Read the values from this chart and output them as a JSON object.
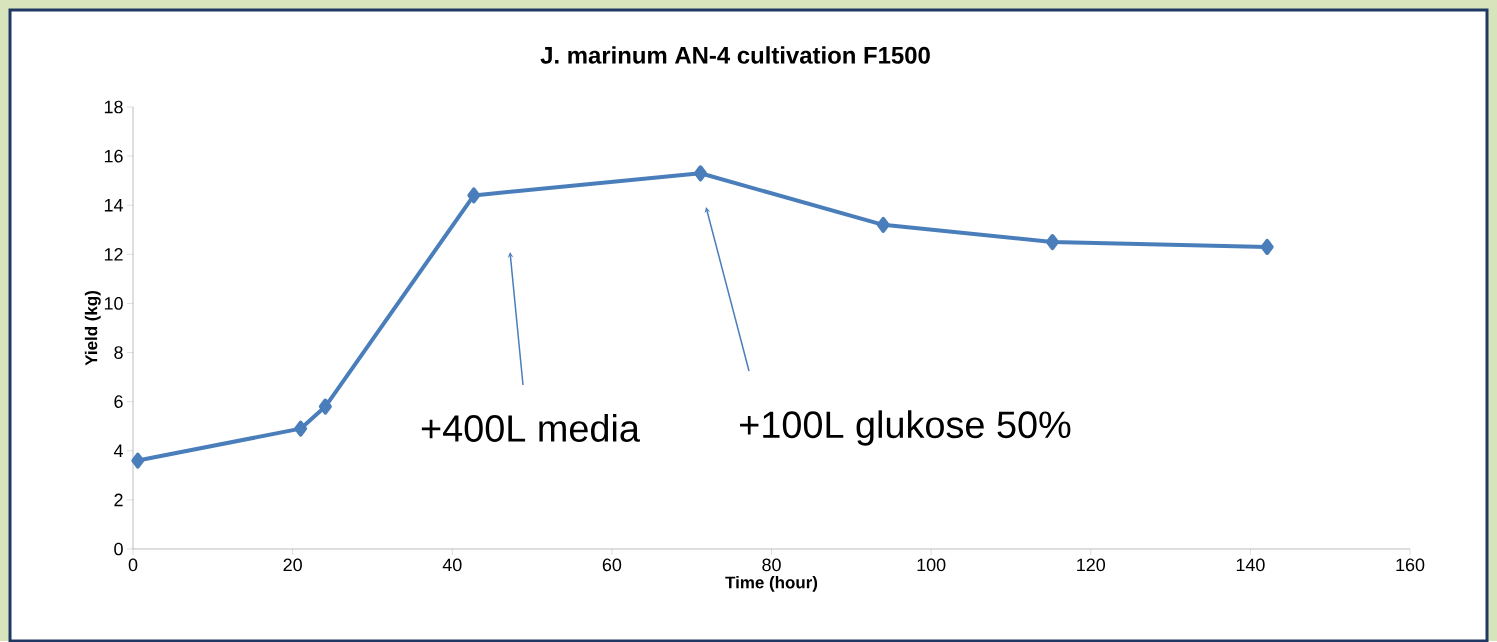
{
  "chart_data": {
    "type": "line",
    "title": "J. marinum AN-4 cultivation F1500",
    "xlabel": "Time (hour)",
    "ylabel": "Yield (kg)",
    "x": [
      0.6,
      21,
      24.1,
      42.7,
      71.1,
      94,
      115.2,
      142.1
    ],
    "series": [
      {
        "color": "#4a7ebb",
        "values": [
          3.6,
          4.9,
          5.8,
          14.4,
          15.3,
          13.2,
          12.5,
          12.3
        ]
      }
    ],
    "xlim": [
      0,
      160
    ],
    "xticks": [
      0,
      20,
      40,
      60,
      80,
      100,
      120,
      140,
      160
    ],
    "ylim": [
      0,
      18
    ],
    "yticks": [
      0,
      2,
      4,
      6,
      8,
      10,
      12,
      14,
      16,
      18
    ],
    "marker": "diamond",
    "annotations": [
      "+400L media",
      "+100L glukose 50%"
    ]
  }
}
